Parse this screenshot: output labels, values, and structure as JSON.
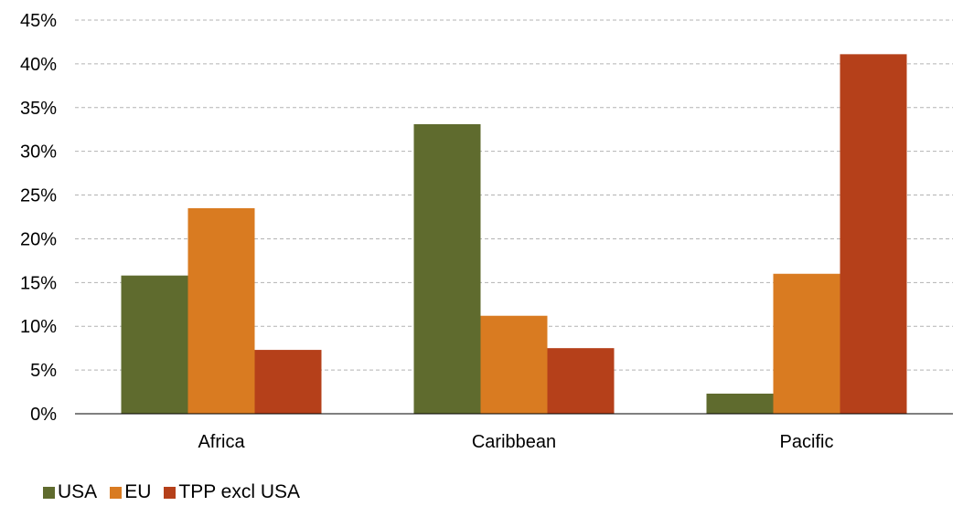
{
  "chart_data": {
    "type": "bar",
    "categories": [
      "Africa",
      "Caribbean",
      "Pacific"
    ],
    "series": [
      {
        "name": "USA",
        "color": "#5f6b2e",
        "values": [
          15.8,
          33.1,
          2.3
        ]
      },
      {
        "name": "EU",
        "color": "#d97b21",
        "values": [
          23.5,
          11.2,
          16.0
        ]
      },
      {
        "name": "TPP excl USA",
        "color": "#b5401a",
        "values": [
          7.3,
          7.5,
          41.1
        ]
      }
    ],
    "y_ticks": [
      "0%",
      "5%",
      "10%",
      "15%",
      "20%",
      "25%",
      "30%",
      "35%",
      "40%",
      "45%"
    ],
    "ylim": [
      0,
      45
    ],
    "grid": true,
    "legend_position": "bottom-left"
  }
}
